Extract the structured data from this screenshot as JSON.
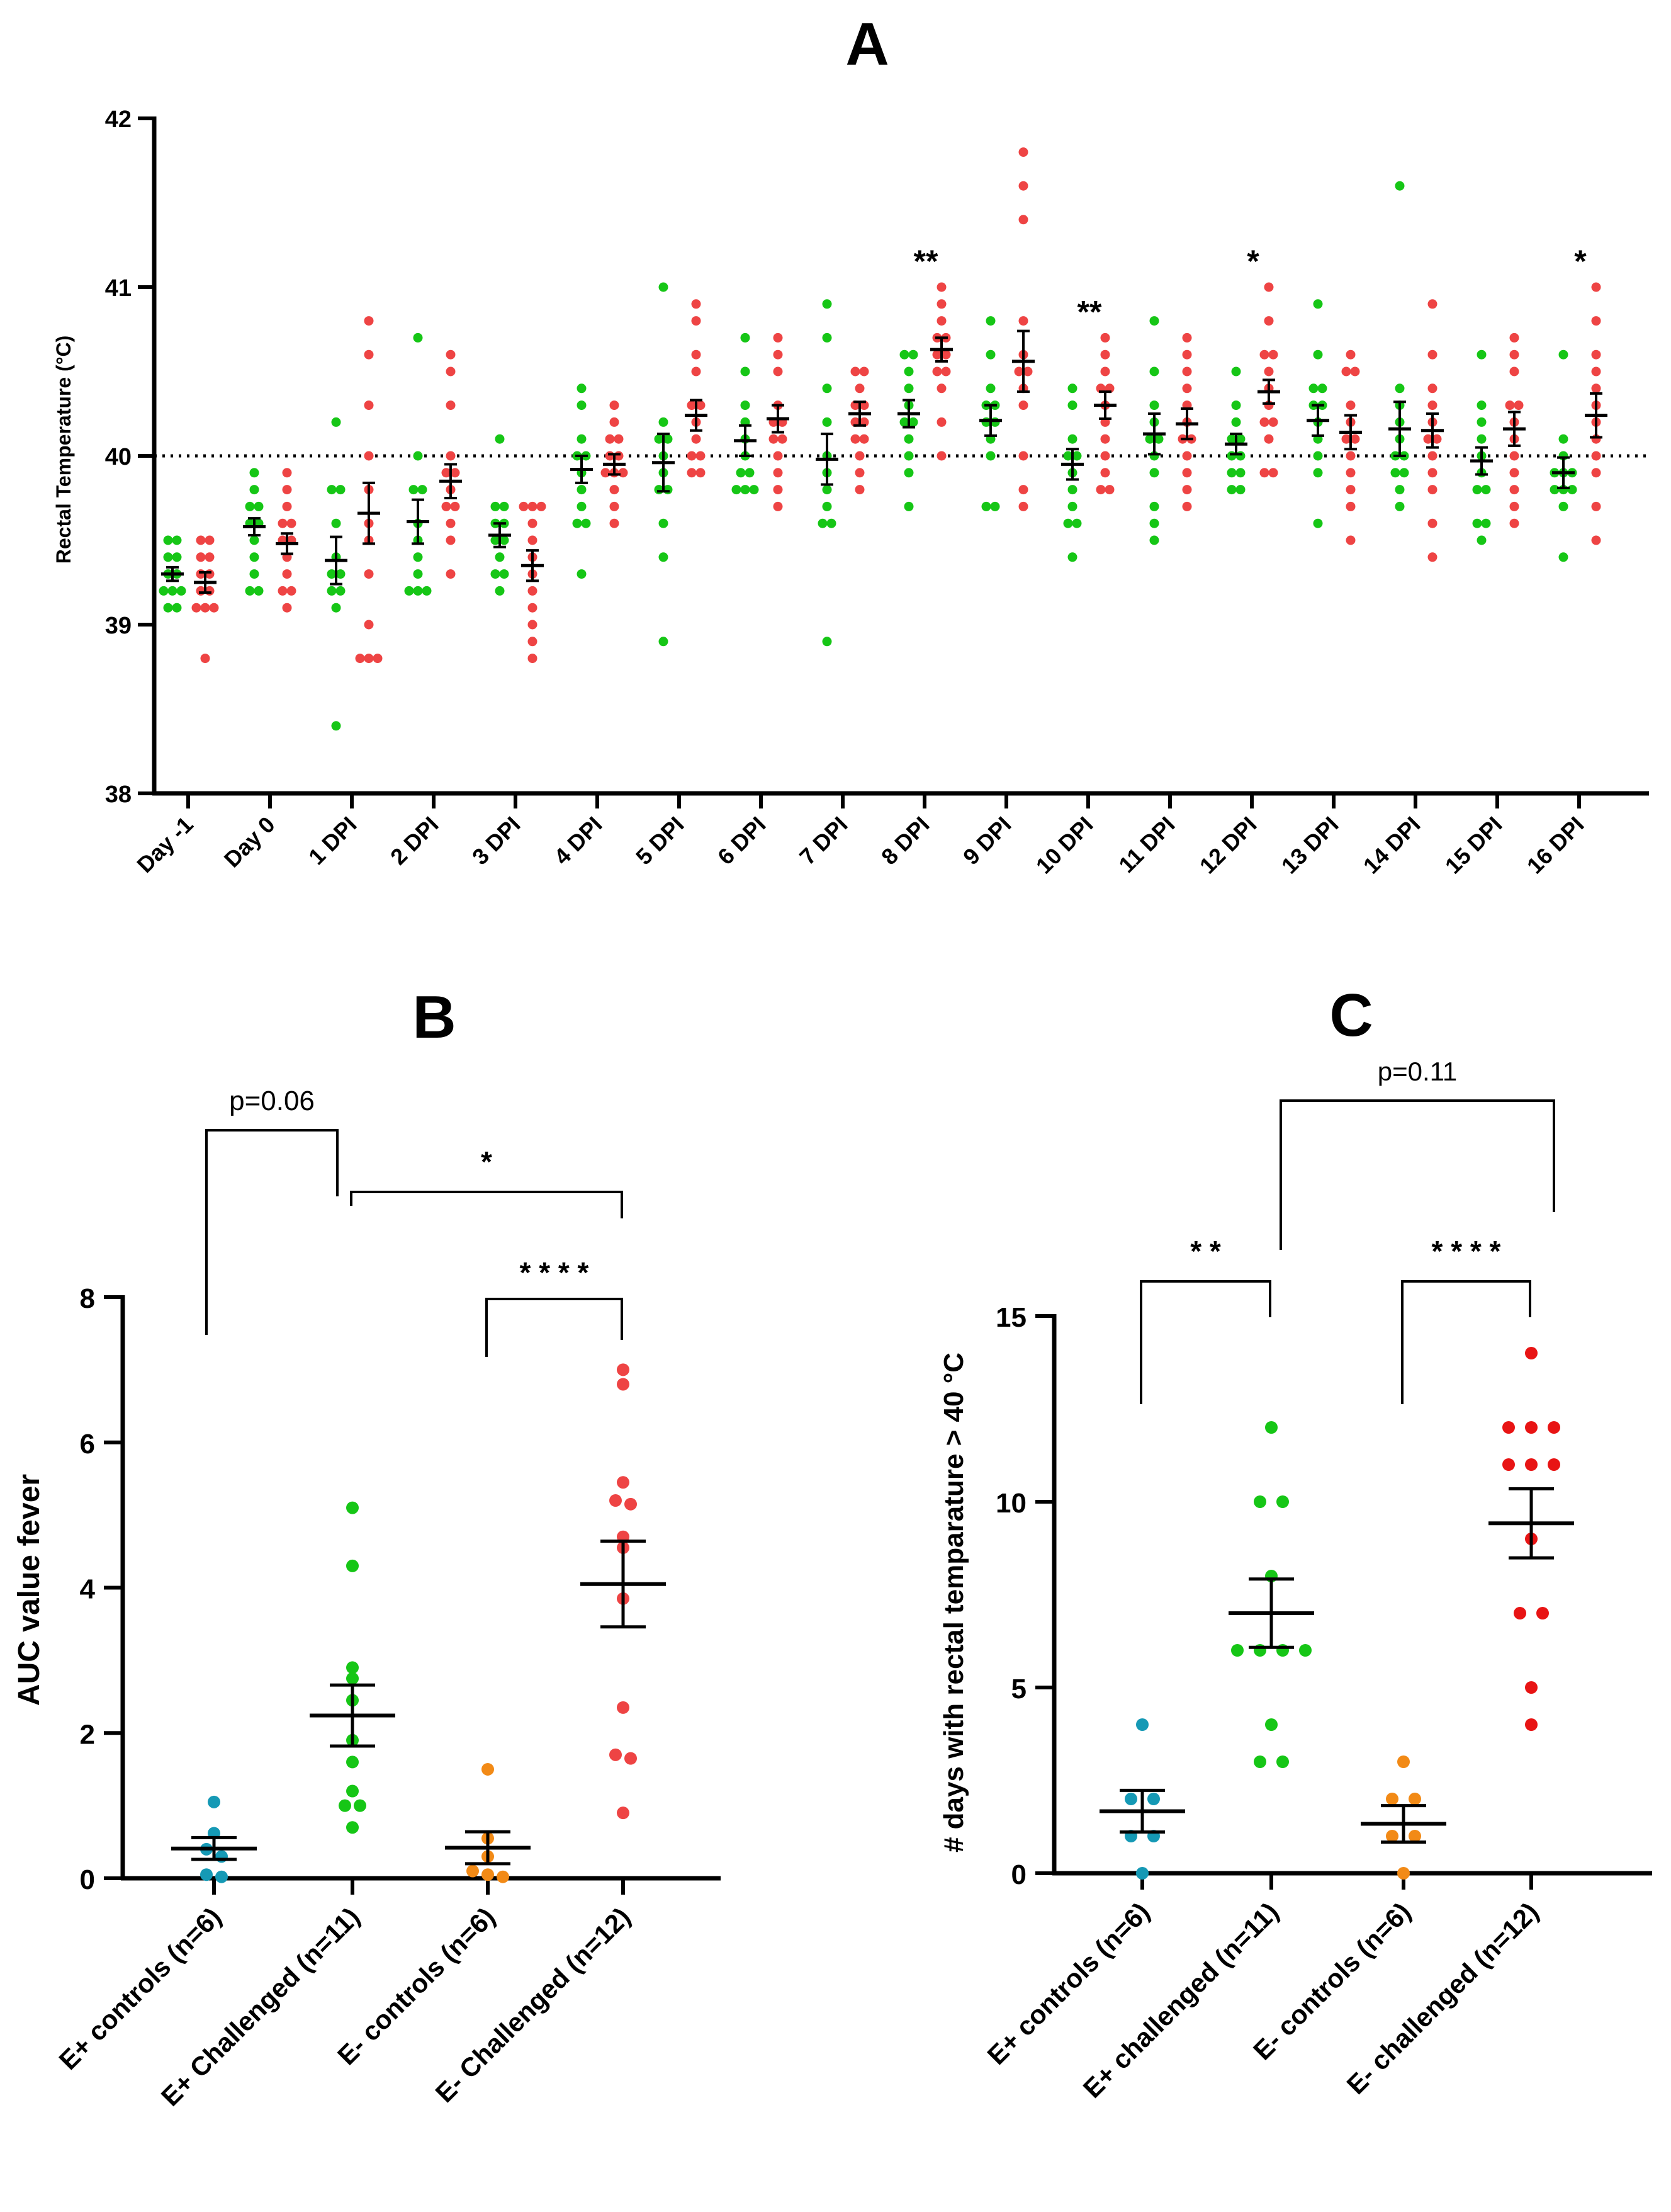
{
  "colors": {
    "e_plus_control": "#1599b5",
    "e_plus_challenged": "#16c616",
    "e_minus_control": "#f28a16",
    "e_minus_challenged": "#ee4444",
    "e_minus_challenged_c": "#e81414",
    "axis": "#000000"
  },
  "chart_data": [
    {
      "panel": "A",
      "type": "scatter",
      "ylabel": "Rectal Temperature (°C)",
      "ylim": [
        38,
        42
      ],
      "yticks": [
        "38",
        "39",
        "40",
        "41",
        "42"
      ],
      "reference_line": 40,
      "categories": [
        "Day -1",
        "Day 0",
        "1 DPI",
        "2 DPI",
        "3 DPI",
        "4 DPI",
        "5 DPI",
        "6 DPI",
        "7 DPI",
        "8 DPI",
        "9 DPI",
        "10 DPI",
        "11 DPI",
        "12 DPI",
        "13 DPI",
        "14 DPI",
        "15 DPI",
        "16 DPI"
      ],
      "significance": [
        {
          "category": "8 DPI",
          "label": "**"
        },
        {
          "category": "10 DPI",
          "label": "**"
        },
        {
          "category": "12 DPI",
          "label": "*"
        },
        {
          "category": "16 DPI",
          "label": "*"
        }
      ],
      "series": [
        {
          "name": "E+",
          "color": "#16c616",
          "points": [
            [
              39.5,
              39.5,
              39.4,
              39.4,
              39.3,
              39.3,
              39.2,
              39.2,
              39.2,
              39.1,
              39.1
            ],
            [
              39.9,
              39.8,
              39.7,
              39.7,
              39.6,
              39.6,
              39.5,
              39.4,
              39.3,
              39.2,
              39.2
            ],
            [
              40.2,
              39.8,
              39.8,
              39.6,
              39.4,
              39.3,
              39.3,
              39.2,
              39.2,
              39.1,
              38.4
            ],
            [
              40.7,
              40.0,
              39.8,
              39.8,
              39.6,
              39.5,
              39.4,
              39.3,
              39.2,
              39.2,
              39.2
            ],
            [
              40.1,
              39.7,
              39.7,
              39.6,
              39.6,
              39.5,
              39.5,
              39.4,
              39.3,
              39.3,
              39.2
            ],
            [
              40.4,
              40.3,
              40.1,
              40.0,
              40.0,
              39.9,
              39.8,
              39.7,
              39.6,
              39.6,
              39.3
            ],
            [
              41.0,
              40.2,
              40.1,
              40.1,
              40.0,
              39.9,
              39.8,
              39.8,
              39.6,
              39.4,
              38.9
            ],
            [
              40.7,
              40.5,
              40.3,
              40.2,
              40.1,
              40.0,
              39.9,
              39.9,
              39.8,
              39.8,
              39.8
            ],
            [
              40.9,
              40.7,
              40.4,
              40.2,
              40.0,
              39.9,
              39.8,
              39.7,
              39.6,
              39.6,
              38.9
            ],
            [
              40.6,
              40.6,
              40.5,
              40.4,
              40.3,
              40.2,
              40.2,
              40.1,
              40.0,
              39.9,
              39.7
            ],
            [
              40.8,
              40.6,
              40.4,
              40.3,
              40.3,
              40.2,
              40.2,
              40.1,
              40.0,
              39.7,
              39.7
            ],
            [
              40.4,
              40.3,
              40.1,
              40.0,
              40.0,
              39.9,
              39.8,
              39.7,
              39.6,
              39.6,
              39.4
            ],
            [
              40.8,
              40.5,
              40.3,
              40.2,
              40.1,
              40.1,
              40.0,
              39.9,
              39.7,
              39.6,
              39.5
            ],
            [
              40.5,
              40.3,
              40.2,
              40.1,
              40.1,
              40.0,
              40.0,
              39.9,
              39.9,
              39.8,
              39.8
            ],
            [
              40.9,
              40.6,
              40.4,
              40.4,
              40.3,
              40.3,
              40.2,
              40.1,
              40.0,
              39.9,
              39.6
            ],
            [
              41.6,
              40.4,
              40.3,
              40.2,
              40.1,
              40.0,
              40.0,
              39.9,
              39.9,
              39.8,
              39.7
            ],
            [
              40.6,
              40.3,
              40.2,
              40.1,
              40.0,
              39.9,
              39.8,
              39.8,
              39.6,
              39.6,
              39.5
            ],
            [
              40.6,
              40.1,
              40.0,
              39.9,
              39.9,
              39.9,
              39.8,
              39.8,
              39.8,
              39.7,
              39.4
            ]
          ],
          "mean": [
            39.3,
            39.58,
            39.38,
            39.61,
            39.53,
            39.92,
            39.96,
            40.09,
            39.98,
            40.25,
            40.21,
            39.95,
            40.13,
            40.07,
            40.21,
            40.16,
            39.97,
            39.9
          ],
          "sem": [
            0.04,
            0.05,
            0.14,
            0.13,
            0.07,
            0.08,
            0.17,
            0.09,
            0.15,
            0.08,
            0.09,
            0.09,
            0.12,
            0.06,
            0.09,
            0.16,
            0.08,
            0.09
          ]
        },
        {
          "name": "E-",
          "color": "#ee4444",
          "points": [
            [
              39.5,
              39.5,
              39.4,
              39.4,
              39.3,
              39.3,
              39.2,
              39.2,
              39.1,
              39.1,
              39.1,
              38.8
            ],
            [
              39.9,
              39.8,
              39.7,
              39.6,
              39.6,
              39.5,
              39.5,
              39.4,
              39.3,
              39.2,
              39.2,
              39.1
            ],
            [
              40.8,
              40.6,
              40.3,
              40.0,
              39.8,
              39.6,
              39.5,
              39.3,
              39.0,
              38.8,
              38.8,
              38.8
            ],
            [
              40.6,
              40.5,
              40.3,
              40.0,
              39.9,
              39.9,
              39.8,
              39.7,
              39.7,
              39.6,
              39.5,
              39.3
            ],
            [
              39.7,
              39.7,
              39.7,
              39.6,
              39.5,
              39.4,
              39.3,
              39.2,
              39.1,
              39.0,
              38.9,
              38.8
            ],
            [
              40.3,
              40.2,
              40.1,
              40.1,
              40.0,
              40.0,
              39.9,
              39.9,
              39.9,
              39.8,
              39.7,
              39.6
            ],
            [
              40.9,
              40.8,
              40.6,
              40.5,
              40.3,
              40.3,
              40.2,
              40.1,
              40.0,
              40.0,
              39.9,
              39.9
            ],
            [
              40.7,
              40.6,
              40.5,
              40.3,
              40.2,
              40.2,
              40.1,
              40.1,
              40.0,
              39.9,
              39.8,
              39.7
            ],
            [
              40.5,
              40.5,
              40.4,
              40.3,
              40.3,
              40.2,
              40.2,
              40.1,
              40.1,
              40.0,
              39.9,
              39.8
            ],
            [
              41.0,
              40.9,
              40.8,
              40.7,
              40.7,
              40.6,
              40.6,
              40.5,
              40.5,
              40.4,
              40.2,
              40.0
            ],
            [
              41.8,
              41.6,
              41.4,
              40.8,
              40.6,
              40.5,
              40.5,
              40.4,
              40.3,
              40.0,
              39.8,
              39.7
            ],
            [
              40.7,
              40.6,
              40.5,
              40.4,
              40.4,
              40.3,
              40.2,
              40.1,
              40.0,
              39.9,
              39.8,
              39.8
            ],
            [
              40.7,
              40.6,
              40.5,
              40.4,
              40.3,
              40.2,
              40.1,
              40.1,
              40.0,
              39.9,
              39.8,
              39.7
            ],
            [
              41.0,
              40.8,
              40.6,
              40.6,
              40.5,
              40.4,
              40.3,
              40.2,
              40.2,
              40.1,
              39.9,
              39.9
            ],
            [
              40.6,
              40.5,
              40.5,
              40.3,
              40.2,
              40.1,
              40.1,
              40.0,
              39.9,
              39.8,
              39.7,
              39.5
            ],
            [
              40.9,
              40.6,
              40.4,
              40.3,
              40.2,
              40.1,
              40.1,
              40.0,
              39.9,
              39.8,
              39.6,
              39.4
            ],
            [
              40.7,
              40.6,
              40.5,
              40.3,
              40.3,
              40.2,
              40.1,
              40.0,
              39.9,
              39.8,
              39.7,
              39.6
            ],
            [
              41.0,
              40.8,
              40.6,
              40.5,
              40.4,
              40.3,
              40.2,
              40.1,
              40.0,
              39.9,
              39.7,
              39.5
            ]
          ],
          "mean": [
            39.25,
            39.48,
            39.66,
            39.85,
            39.35,
            39.95,
            40.24,
            40.22,
            40.25,
            40.63,
            40.56,
            40.3,
            40.19,
            40.38,
            40.14,
            40.15,
            40.16,
            40.24
          ],
          "sem": [
            0.06,
            0.06,
            0.18,
            0.1,
            0.09,
            0.06,
            0.09,
            0.08,
            0.07,
            0.07,
            0.18,
            0.08,
            0.09,
            0.07,
            0.1,
            0.1,
            0.1,
            0.13
          ]
        }
      ]
    },
    {
      "panel": "B",
      "type": "scatter",
      "ylabel": "AUC value fever",
      "ylim": [
        0,
        8
      ],
      "yticks": [
        "0",
        "2",
        "4",
        "6",
        "8"
      ],
      "categories": [
        "E+ controls (n=6)",
        "E+ Challenged (n=11)",
        "E- controls (n=6)",
        "E- Challenged (n=12)"
      ],
      "groups": [
        {
          "color": "#1599b5",
          "points": [
            1.05,
            0.62,
            0.4,
            0.3,
            0.05,
            0.02
          ],
          "mean": 0.41,
          "sem": 0.15
        },
        {
          "color": "#16c616",
          "points": [
            5.1,
            4.3,
            2.9,
            2.75,
            2.45,
            1.9,
            1.6,
            1.2,
            1.0,
            1.0,
            0.7
          ],
          "mean": 2.24,
          "sem": 0.42
        },
        {
          "color": "#f28a16",
          "points": [
            1.5,
            0.55,
            0.3,
            0.1,
            0.05,
            0.02
          ],
          "mean": 0.42,
          "sem": 0.22
        },
        {
          "color": "#ee4444",
          "points": [
            7.0,
            6.8,
            5.45,
            5.2,
            5.15,
            4.7,
            4.55,
            3.85,
            2.35,
            1.7,
            1.65,
            0.9
          ],
          "mean": 4.05,
          "sem": 0.59
        }
      ],
      "comparisons": [
        {
          "from": "E+ controls (n=6)",
          "to": "E+ Challenged (n=11)",
          "label": "p=0.06"
        },
        {
          "from": "E+ Challenged (n=11)",
          "to": "E- Challenged (n=12)",
          "label": "*"
        },
        {
          "from": "E- controls (n=6)",
          "to": "E- Challenged (n=12)",
          "label": "* * * *"
        }
      ]
    },
    {
      "panel": "C",
      "type": "scatter",
      "ylabel": "# days with rectal temparature > 40 °C",
      "ylim": [
        0,
        15
      ],
      "yticks": [
        "0",
        "5",
        "10",
        "15"
      ],
      "categories": [
        "E+ controls (n=6)",
        "E+ challenged (n=11)",
        "E- controls (n=6)",
        "E- challenged (n=12)"
      ],
      "groups": [
        {
          "color": "#1599b5",
          "points": [
            4,
            2,
            2,
            1,
            1,
            0
          ],
          "mean": 1.67,
          "sem": 0.56
        },
        {
          "color": "#16c616",
          "points": [
            12,
            10,
            10,
            8,
            6,
            6,
            6,
            6,
            4,
            3,
            3
          ],
          "mean": 7.0,
          "sem": 0.92
        },
        {
          "color": "#f28a16",
          "points": [
            3,
            2,
            2,
            1,
            1,
            0
          ],
          "mean": 1.33,
          "sem": 0.49
        },
        {
          "color": "#e81414",
          "points": [
            14,
            12,
            12,
            12,
            11,
            11,
            11,
            9,
            7,
            7,
            5,
            4
          ],
          "mean": 9.42,
          "sem": 0.93
        }
      ],
      "comparisons": [
        {
          "from": "E+ controls (n=6)",
          "to": "E+ challenged (n=11)",
          "label": "* *"
        },
        {
          "from": "E- controls (n=6)",
          "to": "E- challenged (n=12)",
          "label": "* * * *"
        },
        {
          "from": "E+ challenged (n=11)",
          "to": "E- challenged (n=12)",
          "label": "p=0.11"
        }
      ]
    }
  ]
}
